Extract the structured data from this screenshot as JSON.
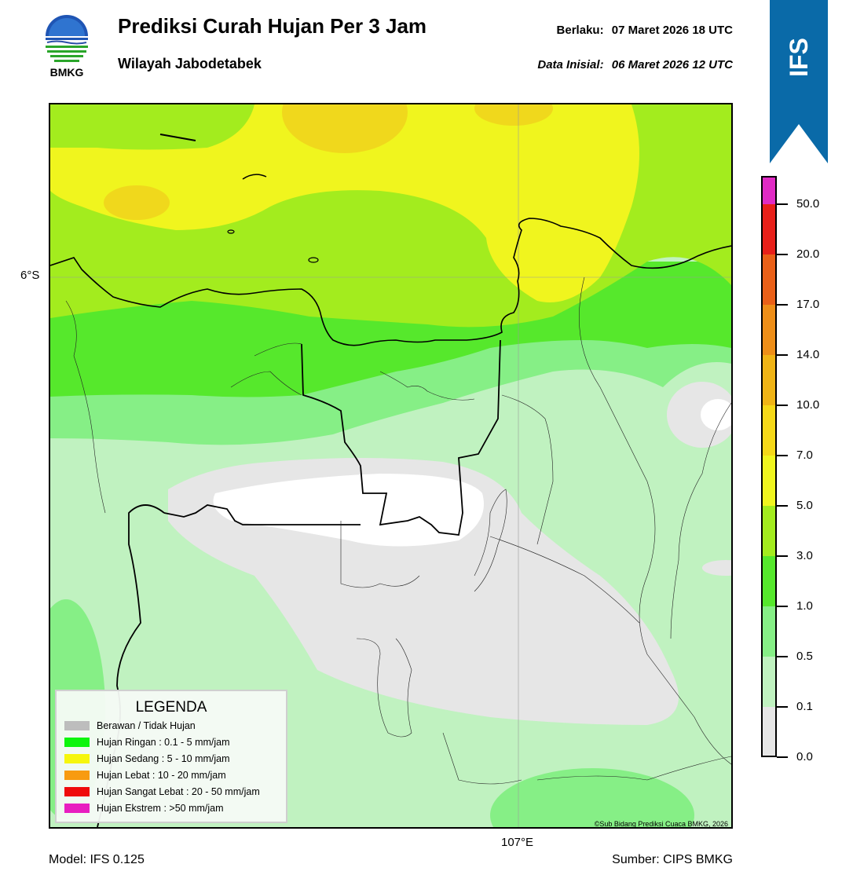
{
  "header": {
    "title": "Prediksi Curah Hujan Per 3 Jam",
    "subtitle": "Wilayah Jabodetabek",
    "valid_label": "Berlaku:",
    "valid_value": "07 Maret 2026 18 UTC",
    "init_label": "Data Inisial:",
    "init_value": "06 Maret 2026 12 UTC"
  },
  "logo": {
    "text": "BMKG",
    "icon": "bmkg-logo"
  },
  "ribbon": {
    "text": "IFS",
    "color": "#0a6aa8"
  },
  "map": {
    "lat_label": "6°S",
    "lon_label": "107°E",
    "copyright": "©Sub Bidang Prediksi Cuaca BMKG, 2026"
  },
  "legend": {
    "title": "LEGENDA",
    "items": [
      {
        "label": "Berawan / Tidak Hujan",
        "color": "#bdbdbd"
      },
      {
        "label": "Hujan Ringan : 0.1 - 5 mm/jam",
        "color": "#0cf50c"
      },
      {
        "label": "Hujan Sedang : 5 - 10 mm/jam",
        "color": "#f6f60c"
      },
      {
        "label": "Hujan Lebat : 10 - 20 mm/jam",
        "color": "#f89b10"
      },
      {
        "label": "Hujan Sangat Lebat : 20 - 50 mm/jam",
        "color": "#ef0b0b"
      },
      {
        "label": "Hujan Ekstrem : >50 mm/jam",
        "color": "#e81ec0"
      }
    ]
  },
  "colorbar": {
    "ticks": [
      "0.0",
      "0.1",
      "0.5",
      "1.0",
      "3.0",
      "5.0",
      "7.0",
      "10.0",
      "14.0",
      "17.0",
      "20.0",
      "50.0"
    ],
    "colors": [
      "#e6e6e6",
      "#c0f2c0",
      "#86ef86",
      "#56e82c",
      "#a3ec1e",
      "#f0f51e",
      "#f5d818",
      "#f0b416",
      "#ee8e18",
      "#ea6018",
      "#e8201a",
      "#e02bc4"
    ]
  },
  "footer": {
    "model": "Model: IFS 0.125",
    "source": "Sumber: CIPS BMKG"
  }
}
